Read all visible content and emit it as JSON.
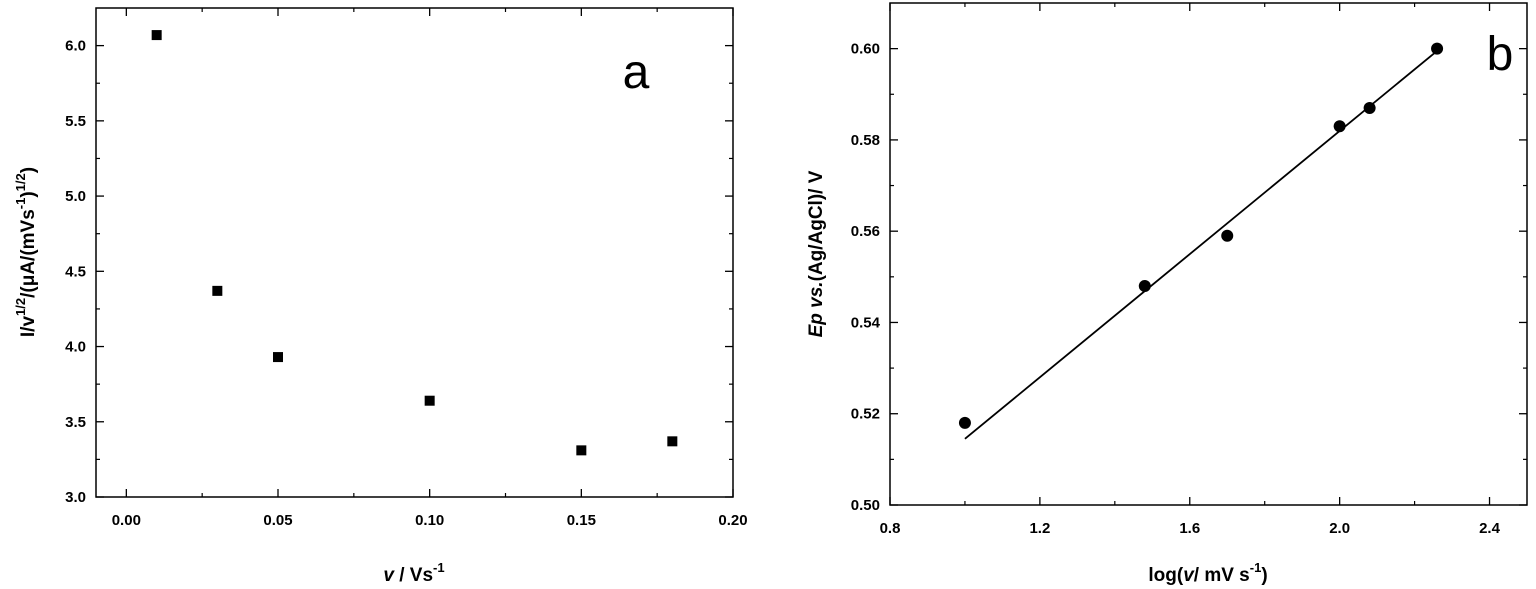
{
  "chart_data": [
    {
      "type": "scatter",
      "panel_label": "a",
      "xlabel": {
        "main": "v",
        "unit": " / Vs",
        "sup": "-1"
      },
      "ylabel": {
        "p1": "I/v",
        "s1": "1/2",
        "p2": "/(μA/(mVs",
        "s2": "-1",
        "p3": ")",
        "s3": "1/2",
        "p4": ")"
      },
      "xlim": [
        -0.01,
        0.2
      ],
      "ylim": [
        3.0,
        6.25
      ],
      "xticks": [
        "0.00",
        "0.05",
        "0.10",
        "0.15",
        "0.20"
      ],
      "yticks": [
        "3.0",
        "3.5",
        "4.0",
        "4.5",
        "5.0",
        "5.5",
        "6.0"
      ],
      "marker": "square",
      "grid": false,
      "series": [
        {
          "x": [
            0.01,
            0.03,
            0.05,
            0.1,
            0.15,
            0.18
          ],
          "y": [
            6.07,
            4.37,
            3.93,
            3.64,
            3.31,
            3.37
          ]
        }
      ]
    },
    {
      "type": "scatter",
      "panel_label": "b",
      "xlabel": {
        "p1": "log(",
        "p2": "v",
        "p3": "/ mV s",
        "sup": "-1",
        "p4": ")"
      },
      "ylabel": {
        "p1": "Ep vs.",
        "p2": "(Ag/AgCl)/ V"
      },
      "xlim": [
        0.8,
        2.5
      ],
      "ylim": [
        0.5,
        0.61
      ],
      "xticks": [
        "0.8",
        "1.2",
        "1.6",
        "2.0",
        "2.4"
      ],
      "yticks": [
        "0.50",
        "0.52",
        "0.54",
        "0.56",
        "0.58",
        "0.60"
      ],
      "marker": "circle",
      "grid": false,
      "series": [
        {
          "x": [
            1.0,
            1.48,
            1.7,
            2.0,
            2.08,
            2.26
          ],
          "y": [
            0.518,
            0.548,
            0.559,
            0.583,
            0.587,
            0.6
          ]
        }
      ],
      "fit_line": {
        "x": [
          1.0,
          2.26
        ],
        "y": [
          0.5145,
          0.5995
        ]
      }
    }
  ]
}
